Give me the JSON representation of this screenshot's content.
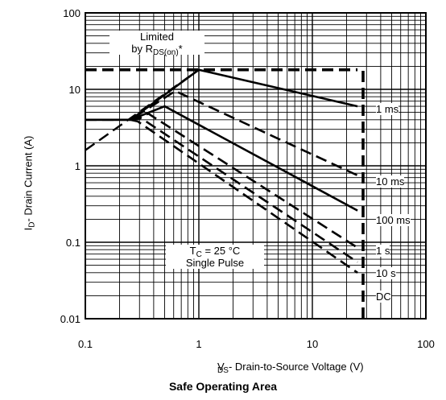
{
  "chart_data": {
    "type": "line",
    "title": "Safe Operating Area",
    "xlabel_parts": {
      "v": "V",
      "sub": "DS",
      "rest": " - Drain-to-Source Voltage (V)"
    },
    "ylabel_parts": {
      "i": "I",
      "sub": "D",
      "rest": "- Drain Current (A)"
    },
    "x_scale": "log",
    "y_scale": "log",
    "xlim": [
      0.1,
      100
    ],
    "ylim": [
      0.01,
      100
    ],
    "x_ticks": [
      "0.1",
      "1",
      "10",
      "100"
    ],
    "y_ticks": [
      "0.01",
      "0.1",
      "1",
      "10",
      "100"
    ],
    "grid": true,
    "series": [
      {
        "name": "1 ms",
        "style": "solid",
        "x": [
          0.1,
          0.25,
          1.0,
          25
        ],
        "y": [
          4.0,
          4.0,
          18,
          6.0
        ]
      },
      {
        "name": "10 ms",
        "style": "dashed",
        "x": [
          0.1,
          0.25,
          0.62,
          25
        ],
        "y": [
          4.0,
          4.0,
          9.5,
          0.75
        ]
      },
      {
        "name": "100 ms",
        "style": "solid",
        "x": [
          0.1,
          0.25,
          0.5,
          25
        ],
        "y": [
          4.0,
          4.0,
          6.0,
          0.26
        ]
      },
      {
        "name": "1 s",
        "style": "dashed",
        "x": [
          0.25,
          0.36,
          25
        ],
        "y": [
          4.0,
          4.8,
          0.085
        ]
      },
      {
        "name": "10 s",
        "style": "dashed",
        "x": [
          0.25,
          0.31,
          25
        ],
        "y": [
          4.0,
          4.2,
          0.055
        ]
      },
      {
        "name": "DC",
        "style": "dashed",
        "x": [
          0.25,
          0.29,
          25
        ],
        "y": [
          4.0,
          3.8,
          0.04
        ]
      }
    ],
    "limit_lines": [
      {
        "name": "RDS(on) limit",
        "style": "dashed",
        "x": [
          0.1,
          1.0
        ],
        "y": [
          1.6,
          18
        ]
      },
      {
        "name": "current limit",
        "style": "dashed",
        "x": [
          0.1,
          25
        ],
        "y": [
          18,
          18
        ]
      },
      {
        "name": "voltage limit",
        "style": "dashed",
        "x": [
          28,
          28
        ],
        "y": [
          0.01,
          18
        ]
      }
    ],
    "line_labels": [
      "1 ms",
      "10 ms",
      "100 ms",
      "1 s",
      "10 s",
      "DC"
    ],
    "annotations": {
      "limited_line1": "Limited",
      "limited_line2_prefix": "by R",
      "limited_sub": "DS(on)",
      "limited_suffix": "*",
      "tc_prefix": "T",
      "tc_sub": "C",
      "tc_value": " = 25 °C",
      "pulse": "Single Pulse"
    }
  }
}
